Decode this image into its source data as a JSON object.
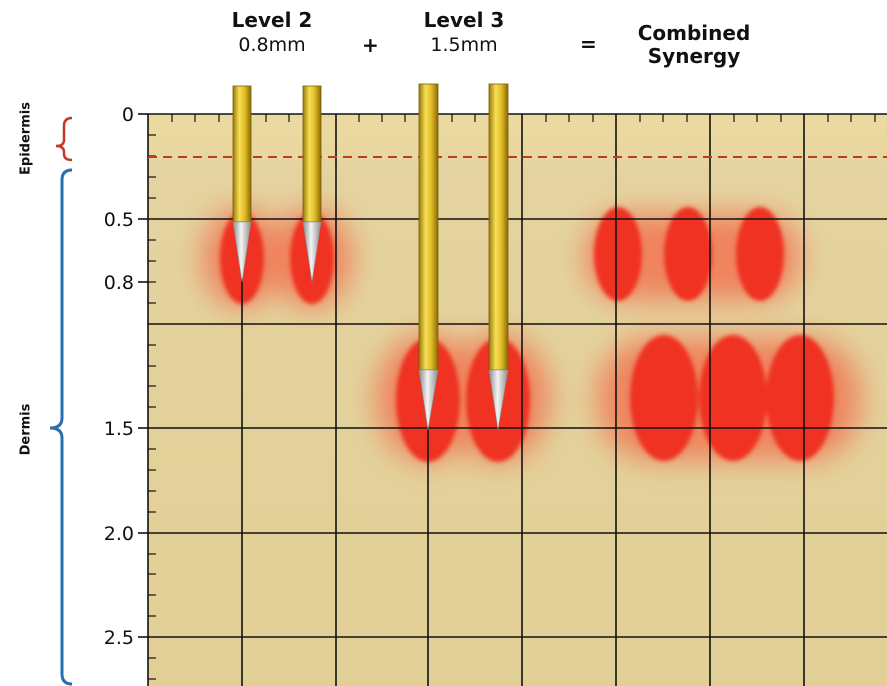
{
  "header": {
    "level2": {
      "title": "Level 2",
      "depth": "0.8mm"
    },
    "plus": "+",
    "level3": {
      "title": "Level 3",
      "depth": "1.5mm"
    },
    "equals": "=",
    "combined": {
      "line1": "Combined",
      "line2": "Synergy"
    }
  },
  "layers": {
    "epidermis": "Epidermis",
    "dermis": "Dermis"
  },
  "depth_axis": {
    "ticks": [
      "0",
      "0.5",
      "0.8",
      "1.5",
      "2.0",
      "2.5"
    ]
  },
  "colors": {
    "skin": "#e7d9a6",
    "grid": "#111111",
    "needle_gold": "#d9b521",
    "needle_tip": "#c9c9c9",
    "zone_red": "#ef3124",
    "zone_glow": "#f36b4a",
    "epidermis_bracket": "#c0392b",
    "dermis_bracket": "#2a6fb0",
    "epidermis_line": "#c0392b"
  }
}
